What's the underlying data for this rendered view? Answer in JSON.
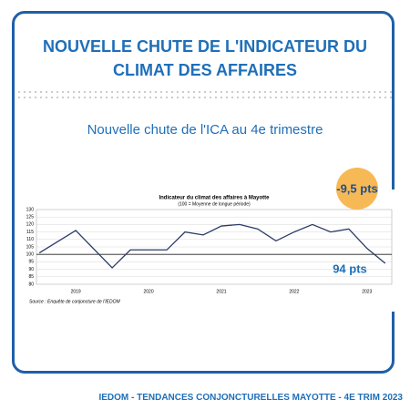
{
  "header": {
    "title": "NOUVELLE CHUTE DE L'INDICATEUR DU CLIMAT DES AFFAIRES",
    "subtitle": "Nouvelle chute de l'ICA au 4e trimestre"
  },
  "badge": "-9,5 pts",
  "annotation": "94 pts",
  "footer": "IEDOM - TENDANCES CONJONCTURELLES MAYOTTE - 4E TRIM 2023",
  "chart_data": {
    "type": "line",
    "title": "Indicateur du climat des affaires à Mayotte",
    "subtitle": "(100 = Moyenne de longue période)",
    "source": "Source : Enquête de conjoncture de l'IEDOM",
    "x": [
      2019,
      2019.5,
      2020,
      2020.25,
      2020.75,
      2021,
      2021.25,
      2021.5,
      2021.75,
      2022,
      2022.25,
      2022.5,
      2022.75,
      2023,
      2023.25,
      2023.5,
      2023.75
    ],
    "series": [
      {
        "name": "ICA",
        "color": "#2b3a67",
        "values": [
          101,
          116,
          91,
          103,
          103,
          115,
          113,
          119,
          120,
          117,
          109,
          115,
          120,
          115,
          117,
          104,
          94
        ]
      }
    ],
    "reference_line": 100,
    "xlim": [
      2018.96,
      2023.84
    ],
    "xticks": [
      {
        "value": 2019.5,
        "label": "2019"
      },
      {
        "value": 2020.5,
        "label": "2020"
      },
      {
        "value": 2021.5,
        "label": "2021"
      },
      {
        "value": 2022.5,
        "label": "2022"
      },
      {
        "value": 2023.5,
        "label": "2023"
      }
    ],
    "ylim": [
      80,
      130
    ],
    "yticks": [
      80,
      85,
      90,
      95,
      100,
      105,
      110,
      115,
      120,
      125,
      130
    ],
    "grid": true
  }
}
